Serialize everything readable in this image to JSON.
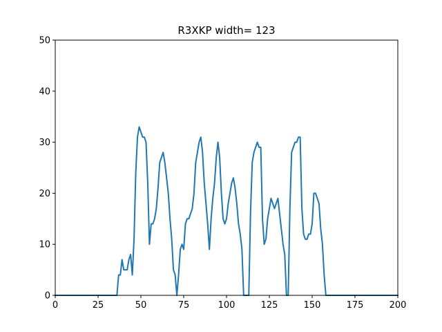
{
  "chart_data": {
    "type": "line",
    "title": "R3XKP width= 123",
    "xlabel": "",
    "ylabel": "",
    "xlim": [
      0,
      200
    ],
    "ylim": [
      0,
      50
    ],
    "xticks": [
      0,
      25,
      50,
      75,
      100,
      125,
      150,
      175,
      200
    ],
    "yticks": [
      0,
      10,
      20,
      30,
      40,
      50
    ],
    "grid": false,
    "line_color": "#1f77b4",
    "series": [
      {
        "x": [
          0,
          36,
          37,
          38,
          39,
          40,
          41,
          42,
          43,
          44,
          45,
          46,
          47,
          48,
          49,
          50,
          51,
          52,
          53,
          54,
          55,
          56,
          57,
          58,
          59,
          60,
          61,
          62,
          63,
          64,
          65,
          66,
          67,
          68,
          69,
          70,
          71,
          72,
          73,
          74,
          75,
          76,
          77,
          78,
          79,
          80,
          81,
          82,
          83,
          84,
          85,
          86,
          87,
          88,
          89,
          90,
          91,
          92,
          93,
          94,
          95,
          96,
          97,
          98,
          99,
          100,
          101,
          102,
          103,
          104,
          105,
          106,
          107,
          108,
          109,
          110,
          111,
          112,
          113,
          114,
          115,
          116,
          117,
          118,
          119,
          120,
          121,
          122,
          123,
          124,
          125,
          126,
          127,
          128,
          129,
          130,
          131,
          132,
          133,
          134,
          135,
          136,
          137,
          138,
          139,
          140,
          141,
          142,
          143,
          144,
          145,
          146,
          147,
          148,
          149,
          150,
          151,
          152,
          153,
          154,
          155,
          156,
          157,
          158,
          200
        ],
        "y": [
          0,
          0,
          4,
          4,
          7,
          5,
          5,
          5,
          7,
          8,
          4,
          11,
          24,
          31,
          33,
          32,
          31,
          31,
          30,
          22,
          10,
          14,
          14,
          15,
          17,
          21,
          26,
          27,
          28,
          26,
          23,
          20,
          15,
          11,
          5,
          4,
          0,
          4,
          9,
          10,
          9,
          14,
          15,
          15,
          16,
          17,
          20,
          26,
          28,
          30,
          31,
          28,
          22,
          18,
          14,
          9,
          15,
          19,
          22,
          27,
          30,
          27,
          20,
          15,
          14,
          15,
          18,
          20,
          22,
          23,
          21,
          18,
          14,
          12,
          9,
          0,
          0,
          0,
          0,
          16,
          26,
          28,
          29,
          30,
          29,
          29,
          15,
          10,
          11,
          15,
          17,
          19,
          18,
          17,
          18,
          19,
          16,
          13,
          10,
          8,
          0,
          0,
          17,
          28,
          29,
          30,
          30,
          31,
          31,
          17,
          12,
          11,
          11,
          12,
          12,
          14,
          20,
          20,
          19,
          18,
          13,
          10,
          4,
          0,
          0
        ]
      }
    ]
  }
}
